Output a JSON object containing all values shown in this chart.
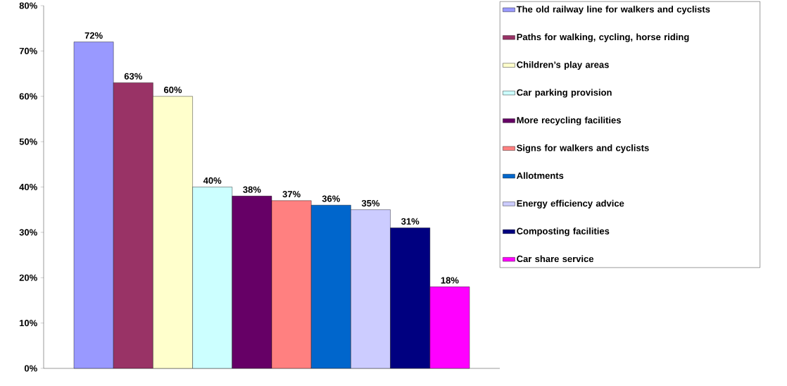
{
  "chart_data": {
    "type": "bar",
    "categories": [
      null
    ],
    "ylim": [
      0,
      80
    ],
    "yticks": [
      {
        "value": 0,
        "label": "0%"
      },
      {
        "value": 10,
        "label": "10%"
      },
      {
        "value": 20,
        "label": "20%"
      },
      {
        "value": 30,
        "label": "30%"
      },
      {
        "value": 40,
        "label": "40%"
      },
      {
        "value": 50,
        "label": "50%"
      },
      {
        "value": 60,
        "label": "60%"
      },
      {
        "value": 70,
        "label": "70%"
      },
      {
        "value": 80,
        "label": "80%"
      }
    ],
    "legend": "right",
    "grid": false,
    "series": [
      {
        "name": "The old railway line for walkers and cyclists",
        "color": "#9999ff",
        "values": [
          72
        ],
        "value_labels": [
          "72%"
        ]
      },
      {
        "name": "Paths for walking, cycling, horse riding",
        "color": "#993366",
        "values": [
          63
        ],
        "value_labels": [
          "63%"
        ]
      },
      {
        "name": "Children’s play areas",
        "color": "#ffffcc",
        "values": [
          60
        ],
        "value_labels": [
          "60%"
        ]
      },
      {
        "name": "Car parking provision",
        "color": "#ccffff",
        "values": [
          40
        ],
        "value_labels": [
          "40%"
        ]
      },
      {
        "name": "More recycling facilities",
        "color": "#660066",
        "values": [
          38
        ],
        "value_labels": [
          "38%"
        ]
      },
      {
        "name": "Signs for walkers and cyclists",
        "color": "#ff8080",
        "values": [
          37
        ],
        "value_labels": [
          "37%"
        ]
      },
      {
        "name": "Allotments",
        "color": "#0066cc",
        "values": [
          36
        ],
        "value_labels": [
          "36%"
        ]
      },
      {
        "name": "Energy efficiency advice",
        "color": "#ccccff",
        "values": [
          35
        ],
        "value_labels": [
          "35%"
        ]
      },
      {
        "name": "Composting facilities",
        "color": "#000080",
        "values": [
          31
        ],
        "value_labels": [
          "31%"
        ]
      },
      {
        "name": "Car share service",
        "color": "#ff00ff",
        "values": [
          18
        ],
        "value_labels": [
          "18%"
        ]
      }
    ]
  }
}
